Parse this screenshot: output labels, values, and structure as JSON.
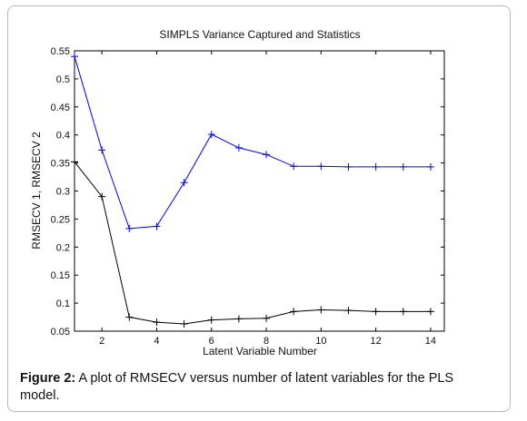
{
  "chart_data": {
    "type": "line",
    "title": "SIMPLS Variance Captured and Statistics",
    "xlabel": "Latent Variable Number",
    "ylabel": "RMSECV 1, RMSECV 2",
    "xlim": [
      1,
      14.5
    ],
    "ylim": [
      0.05,
      0.55
    ],
    "xticks": [
      2,
      4,
      6,
      8,
      10,
      12,
      14
    ],
    "yticks": [
      0.05,
      0.1,
      0.15,
      0.2,
      0.25,
      0.3,
      0.35,
      0.4,
      0.45,
      0.5,
      0.55
    ],
    "ytick_labels": [
      "0.05",
      "0.1",
      "0.15",
      "0.2",
      "0.25",
      "0.3",
      "0.35",
      "0.4",
      "0.45",
      "0.5",
      "0.55"
    ],
    "grid": false,
    "marker": "+",
    "x": [
      1,
      2,
      3,
      4,
      5,
      6,
      7,
      8,
      9,
      10,
      11,
      12,
      13,
      14
    ],
    "series": [
      {
        "color": "#0000ff",
        "values": [
          0.54,
          0.373,
          0.233,
          0.237,
          0.315,
          0.401,
          0.377,
          0.365,
          0.344,
          0.344,
          0.343,
          0.343,
          0.343,
          0.343
        ]
      },
      {
        "color": "#000000",
        "values": [
          0.352,
          0.29,
          0.075,
          0.066,
          0.063,
          0.07,
          0.072,
          0.073,
          0.085,
          0.088,
          0.087,
          0.085,
          0.085,
          0.085
        ]
      }
    ]
  },
  "caption": {
    "label": "Figure 2:",
    "text": " A plot of RMSECV versus number of latent variables for the PLS model."
  }
}
